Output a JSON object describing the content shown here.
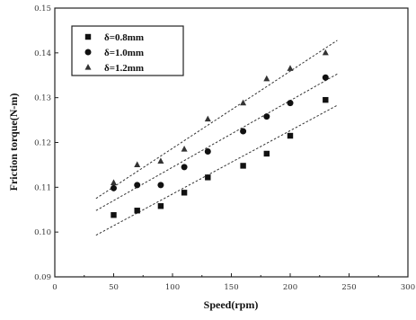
{
  "chart_data": {
    "type": "scatter",
    "xlabel": "Speed(rpm)",
    "ylabel": "Friction torque(N-m)",
    "xlim": [
      0,
      300
    ],
    "ylim": [
      0.09,
      0.15
    ],
    "xticks": [
      0,
      50,
      100,
      150,
      200,
      250,
      300
    ],
    "yticks": [
      0.09,
      0.1,
      0.11,
      0.12,
      0.13,
      0.14,
      0.15
    ],
    "xtick_labels": [
      "0",
      "50",
      "100",
      "150",
      "200",
      "250",
      "300"
    ],
    "ytick_labels": [
      "0.09",
      "0.10",
      "0.11",
      "0.12",
      "0.13",
      "0.14",
      "0.15"
    ],
    "grid": false,
    "legend_position": "top-left",
    "series": [
      {
        "name": "δ=0.8mm",
        "marker": "square",
        "x": [
          50,
          70,
          90,
          110,
          130,
          160,
          180,
          200,
          230
        ],
        "y": [
          0.1038,
          0.1048,
          0.1058,
          0.1088,
          0.1122,
          0.1148,
          0.1175,
          0.1215,
          0.1295
        ],
        "fit": [
          [
            35,
            0.0993
          ],
          [
            240,
            0.1283
          ]
        ]
      },
      {
        "name": "δ=1.0mm",
        "marker": "circle",
        "x": [
          50,
          70,
          90,
          110,
          130,
          160,
          180,
          200,
          230
        ],
        "y": [
          0.1098,
          0.1105,
          0.1105,
          0.1145,
          0.118,
          0.1225,
          0.1258,
          0.1288,
          0.1345
        ],
        "fit": [
          [
            35,
            0.1048
          ],
          [
            240,
            0.1353
          ]
        ]
      },
      {
        "name": "δ=1.2mm",
        "marker": "triangle",
        "x": [
          50,
          70,
          90,
          110,
          130,
          160,
          180,
          200,
          230
        ],
        "y": [
          0.111,
          0.115,
          0.1158,
          0.1185,
          0.1252,
          0.1288,
          0.1342,
          0.1365,
          0.14
        ],
        "fit": [
          [
            35,
            0.1075
          ],
          [
            240,
            0.1428
          ]
        ]
      }
    ]
  }
}
